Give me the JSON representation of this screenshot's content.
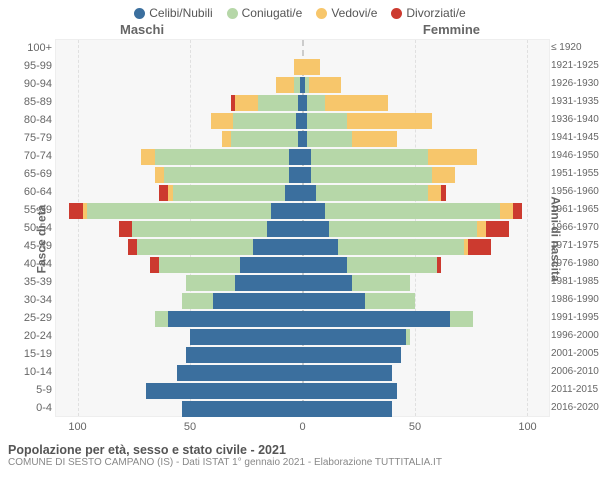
{
  "legend": [
    {
      "label": "Celibi/Nubili",
      "color": "#3b6f9e"
    },
    {
      "label": "Coniugati/e",
      "color": "#b6d7a8"
    },
    {
      "label": "Vedovi/e",
      "color": "#f7c66b"
    },
    {
      "label": "Divorziati/e",
      "color": "#cc3a2f"
    }
  ],
  "gender_left": "Maschi",
  "gender_right": "Femmine",
  "ylabel_left": "Fasce di età",
  "ylabel_right": "Anni di nascita",
  "xticks": [
    100,
    50,
    0,
    50,
    100
  ],
  "xmax": 110,
  "colors": {
    "cel": "#3b6f9e",
    "con": "#b6d7a8",
    "ved": "#f7c66b",
    "div": "#cc3a2f",
    "bg": "#f7f7f7",
    "grid": "#e0e0e0"
  },
  "rows": [
    {
      "age": "100+",
      "birth": "≤ 1920",
      "m": [
        0,
        0,
        0,
        0
      ],
      "f": [
        0,
        0,
        0,
        0
      ]
    },
    {
      "age": "95-99",
      "birth": "1921-1925",
      "m": [
        0,
        0,
        4,
        0
      ],
      "f": [
        0,
        0,
        8,
        0
      ]
    },
    {
      "age": "90-94",
      "birth": "1926-1930",
      "m": [
        1,
        3,
        8,
        0
      ],
      "f": [
        1,
        2,
        14,
        0
      ]
    },
    {
      "age": "85-89",
      "birth": "1931-1935",
      "m": [
        2,
        18,
        10,
        2
      ],
      "f": [
        2,
        8,
        28,
        0
      ]
    },
    {
      "age": "80-84",
      "birth": "1936-1940",
      "m": [
        3,
        28,
        10,
        0
      ],
      "f": [
        2,
        18,
        38,
        0
      ]
    },
    {
      "age": "75-79",
      "birth": "1941-1945",
      "m": [
        2,
        30,
        4,
        0
      ],
      "f": [
        2,
        20,
        20,
        0
      ]
    },
    {
      "age": "70-74",
      "birth": "1946-1950",
      "m": [
        6,
        60,
        6,
        0
      ],
      "f": [
        4,
        52,
        22,
        0
      ]
    },
    {
      "age": "65-69",
      "birth": "1951-1955",
      "m": [
        6,
        56,
        4,
        0
      ],
      "f": [
        4,
        54,
        10,
        0
      ]
    },
    {
      "age": "60-64",
      "birth": "1956-1960",
      "m": [
        8,
        50,
        2,
        4
      ],
      "f": [
        6,
        50,
        6,
        2
      ]
    },
    {
      "age": "55-59",
      "birth": "1961-1965",
      "m": [
        14,
        82,
        2,
        6
      ],
      "f": [
        10,
        78,
        6,
        4
      ]
    },
    {
      "age": "50-54",
      "birth": "1966-1970",
      "m": [
        16,
        60,
        0,
        6
      ],
      "f": [
        12,
        66,
        4,
        10
      ]
    },
    {
      "age": "45-49",
      "birth": "1971-1975",
      "m": [
        22,
        52,
        0,
        4
      ],
      "f": [
        16,
        56,
        2,
        10
      ]
    },
    {
      "age": "40-44",
      "birth": "1976-1980",
      "m": [
        28,
        36,
        0,
        4
      ],
      "f": [
        20,
        40,
        0,
        2
      ]
    },
    {
      "age": "35-39",
      "birth": "1981-1985",
      "m": [
        30,
        22,
        0,
        0
      ],
      "f": [
        22,
        26,
        0,
        0
      ]
    },
    {
      "age": "30-34",
      "birth": "1986-1990",
      "m": [
        40,
        14,
        0,
        0
      ],
      "f": [
        28,
        22,
        0,
        0
      ]
    },
    {
      "age": "25-29",
      "birth": "1991-1995",
      "m": [
        60,
        6,
        0,
        0
      ],
      "f": [
        66,
        10,
        0,
        0
      ]
    },
    {
      "age": "20-24",
      "birth": "1996-2000",
      "m": [
        50,
        0,
        0,
        0
      ],
      "f": [
        46,
        2,
        0,
        0
      ]
    },
    {
      "age": "15-19",
      "birth": "2001-2005",
      "m": [
        52,
        0,
        0,
        0
      ],
      "f": [
        44,
        0,
        0,
        0
      ]
    },
    {
      "age": "10-14",
      "birth": "2006-2010",
      "m": [
        56,
        0,
        0,
        0
      ],
      "f": [
        40,
        0,
        0,
        0
      ]
    },
    {
      "age": "5-9",
      "birth": "2011-2015",
      "m": [
        70,
        0,
        0,
        0
      ],
      "f": [
        42,
        0,
        0,
        0
      ]
    },
    {
      "age": "0-4",
      "birth": "2016-2020",
      "m": [
        54,
        0,
        0,
        0
      ],
      "f": [
        40,
        0,
        0,
        0
      ]
    }
  ],
  "footer_title": "Popolazione per età, sesso e stato civile - 2021",
  "footer_sub": "COMUNE DI SESTO CAMPANO (IS) - Dati ISTAT 1° gennaio 2021 - Elaborazione TUTTITALIA.IT"
}
